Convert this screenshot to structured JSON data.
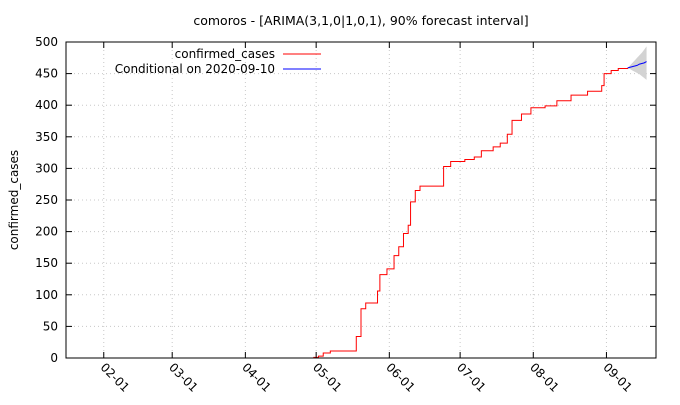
{
  "chart_data": {
    "type": "line",
    "title": "comoros -  [ARIMA(3,1,0|1,0,1), 90% forecast interval]",
    "xlabel": "",
    "ylabel": "confirmed_cases",
    "x_tick_labels": [
      "02-01",
      "03-01",
      "04-01",
      "05-01",
      "06-01",
      "07-01",
      "08-01",
      "09-01"
    ],
    "x_ticks": [
      "2020-02-01",
      "2020-03-01",
      "2020-04-01",
      "2020-05-01",
      "2020-06-01",
      "2020-07-01",
      "2020-08-01",
      "2020-09-01"
    ],
    "xlim": [
      "2020-01-16",
      "2020-09-22"
    ],
    "ylim": [
      0,
      500
    ],
    "y_ticks": [
      0,
      50,
      100,
      150,
      200,
      250,
      300,
      350,
      400,
      450,
      500
    ],
    "grid": true,
    "legend_position": "top-center",
    "series": [
      {
        "name": "confirmed_cases",
        "color": "#ff0000",
        "points": [
          [
            "2020-04-29",
            0
          ],
          [
            "2020-04-30",
            1
          ],
          [
            "2020-05-02",
            3
          ],
          [
            "2020-05-04",
            8
          ],
          [
            "2020-05-07",
            11
          ],
          [
            "2020-05-15",
            11
          ],
          [
            "2020-05-18",
            34
          ],
          [
            "2020-05-20",
            78
          ],
          [
            "2020-05-22",
            87
          ],
          [
            "2020-05-27",
            106
          ],
          [
            "2020-05-28",
            132
          ],
          [
            "2020-05-31",
            141
          ],
          [
            "2020-06-03",
            162
          ],
          [
            "2020-06-05",
            176
          ],
          [
            "2020-06-07",
            197
          ],
          [
            "2020-06-09",
            210
          ],
          [
            "2020-06-10",
            247
          ],
          [
            "2020-06-12",
            265
          ],
          [
            "2020-06-14",
            272
          ],
          [
            "2020-06-23",
            272
          ],
          [
            "2020-06-24",
            303
          ],
          [
            "2020-06-27",
            311
          ],
          [
            "2020-07-03",
            314
          ],
          [
            "2020-07-07",
            318
          ],
          [
            "2020-07-10",
            328
          ],
          [
            "2020-07-15",
            334
          ],
          [
            "2020-07-18",
            340
          ],
          [
            "2020-07-21",
            354
          ],
          [
            "2020-07-23",
            376
          ],
          [
            "2020-07-27",
            386
          ],
          [
            "2020-07-31",
            396
          ],
          [
            "2020-08-06",
            399
          ],
          [
            "2020-08-11",
            407
          ],
          [
            "2020-08-17",
            416
          ],
          [
            "2020-08-21",
            416
          ],
          [
            "2020-08-24",
            422
          ],
          [
            "2020-08-30",
            431
          ],
          [
            "2020-08-31",
            450
          ],
          [
            "2020-09-03",
            455
          ],
          [
            "2020-09-06",
            458
          ],
          [
            "2020-09-10",
            459
          ]
        ]
      },
      {
        "name": "Conditional on 2020-09-10",
        "color": "#0000ff",
        "points": [
          [
            "2020-09-10",
            459
          ],
          [
            "2020-09-11",
            460
          ],
          [
            "2020-09-12",
            461
          ],
          [
            "2020-09-13",
            462
          ],
          [
            "2020-09-14",
            463
          ],
          [
            "2020-09-15",
            465
          ],
          [
            "2020-09-16",
            466
          ],
          [
            "2020-09-17",
            467
          ],
          [
            "2020-09-18",
            469
          ]
        ]
      }
    ],
    "forecast_interval": {
      "color": "#d3d3d3",
      "upper": [
        [
          "2020-09-10",
          459
        ],
        [
          "2020-09-11",
          463
        ],
        [
          "2020-09-12",
          467
        ],
        [
          "2020-09-13",
          471
        ],
        [
          "2020-09-14",
          475
        ],
        [
          "2020-09-15",
          479
        ],
        [
          "2020-09-16",
          483
        ],
        [
          "2020-09-17",
          488
        ],
        [
          "2020-09-18",
          493
        ]
      ],
      "lower": [
        [
          "2020-09-10",
          459
        ],
        [
          "2020-09-11",
          457
        ],
        [
          "2020-09-12",
          455
        ],
        [
          "2020-09-13",
          453
        ],
        [
          "2020-09-14",
          451
        ],
        [
          "2020-09-15",
          449
        ],
        [
          "2020-09-16",
          446
        ],
        [
          "2020-09-17",
          443
        ],
        [
          "2020-09-18",
          440
        ]
      ]
    }
  }
}
